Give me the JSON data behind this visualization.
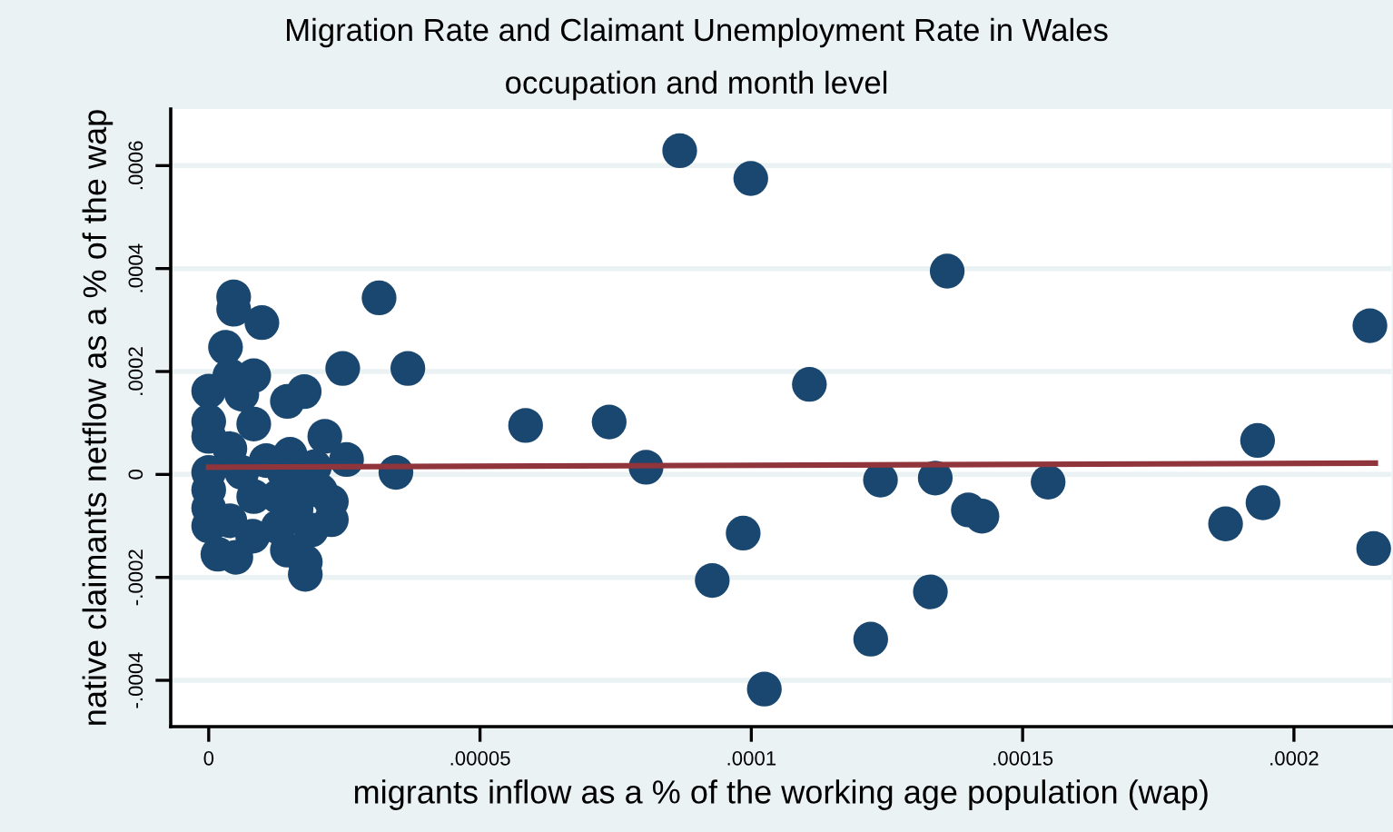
{
  "chart_data": {
    "type": "scatter",
    "title": "Migration Rate and Claimant Unemployment Rate in Wales",
    "subtitle": "occupation and month level",
    "xlabel": "migrants inflow as a % of the working age population (wap)",
    "ylabel": "native claimants netflow as a % of the wap",
    "xlim": [
      -7e-06,
      0.000218
    ],
    "ylim": [
      -0.00049,
      0.00071
    ],
    "xticks": [
      0,
      {
        "value": 5e-05,
        "label": ".00005"
      },
      {
        "value": 0.0001,
        "label": ".0001"
      },
      {
        "value": 0.00015,
        "label": ".00015"
      },
      {
        "value": 0.0002,
        "label": ".0002"
      }
    ],
    "yticks": [
      {
        "value": -0.0004,
        "label": "-.0004"
      },
      {
        "value": -0.0002,
        "label": "-.0002"
      },
      0,
      {
        "value": 0.0002,
        "label": ".0002"
      },
      {
        "value": 0.0004,
        "label": ".0004"
      },
      {
        "value": 0.0006,
        "label": ".0006"
      }
    ],
    "grid": "y",
    "legend": false,
    "marker": "circle",
    "series": [
      {
        "color": "#1a476f",
        "x": [
          5.84e-05,
          7.38e-05,
          8.06e-05,
          8.68e-05,
          9.99e-05,
          0.0001107,
          9.85e-05,
          9.28e-05,
          0.0001024,
          0.000122,
          0.0001238,
          0.0001339,
          0.000133,
          0.0001361,
          0.00014,
          0.0001425,
          0.0001547,
          0.0001874,
          0.0001933,
          0.0001943,
          0.000214,
          0.0002147,
          4.6e-06,
          4.6e-06,
          9.8e-06,
          3.1e-06,
          3.14e-05,
          2.47e-05,
          3.67e-05,
          3.45e-05,
          1.76e-05,
          1.45e-05,
          2.14e-05,
          2.54e-05,
          2.26e-05,
          2.26e-05,
          1.89e-05,
          1.45e-05,
          1.78e-05,
          1.78e-05,
          1.28e-05,
          8.1e-06,
          1.7e-06,
          5e-06,
          0,
          0,
          0,
          0,
          0,
          0,
          0,
          3.9e-06,
          8.3e-06,
          6.1e-06,
          8.3e-06,
          3.9e-06,
          6.1e-06,
          8.3e-06,
          3.9e-06,
          1.06e-05,
          1.39e-05,
          1.5e-05,
          1.73e-05,
          1.95e-05,
          1.28e-05,
          1.61e-05,
          2.06e-05
        ],
        "values": [
          9.52e-05,
          0.000102,
          1.4e-05,
          0.000629,
          0.000575,
          0.000175,
          -0.000114,
          -0.000206,
          -0.000417,
          -0.00032,
          -1.1e-05,
          -7e-06,
          -0.000228,
          0.000395,
          -6.9e-05,
          -8.1e-05,
          -1.5e-05,
          -9.6e-05,
          6.6e-05,
          -5.5e-05,
          0.000289,
          -0.000144,
          0.000345,
          0.000321,
          0.000295,
          0.000247,
          0.000343,
          0.000206,
          0.000206,
          4e-06,
          0.000161,
          0.000142,
          7.4e-05,
          2.9e-05,
          -5.3e-05,
          -8.8e-05,
          -0.000108,
          -0.000147,
          -0.00017,
          -0.000194,
          -0.000102,
          -0.00012,
          -0.000155,
          -0.000161,
          0.000162,
          0.000103,
          7.4e-05,
          4e-06,
          -3e-05,
          -6.5e-05,
          -0.0001,
          0.000192,
          0.000192,
          0.000156,
          9.8e-05,
          5e-05,
          4e-06,
          -4.3e-05,
          -9e-05,
          2.7e-05,
          4e-06,
          3.9e-05,
          -8e-06,
          1.5e-05,
          -4.3e-05,
          -6.7e-05,
          -3.2e-05
        ]
      },
      {
        "type": "line",
        "color": "#90353b",
        "marker": "none",
        "x": [
          0,
          0.000215
        ],
        "values": [
          1.4e-05,
          2.2e-05
        ]
      }
    ]
  }
}
